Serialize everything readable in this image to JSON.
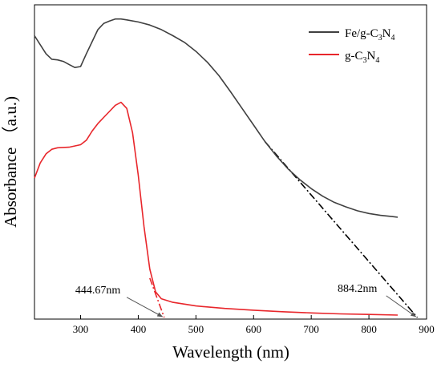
{
  "chart_data": {
    "type": "line",
    "xlabel": "Wavelength (nm)",
    "ylabel": "Absorbance （a.u.)",
    "xlim": [
      220,
      900
    ],
    "ylim": [
      0,
      1
    ],
    "xticks": [
      300,
      400,
      500,
      600,
      700,
      800,
      900
    ],
    "yticks_shown": false,
    "grid": false,
    "legend_position": "top-right",
    "series": [
      {
        "name": "Fe/g-C3N4",
        "name_parts": {
          "a": "Fe/g-C",
          "b": "3",
          "c": "N",
          "d": "4"
        },
        "color": "#404040",
        "points": [
          [
            220,
            0.93
          ],
          [
            230,
            0.9
          ],
          [
            240,
            0.87
          ],
          [
            250,
            0.852
          ],
          [
            260,
            0.85
          ],
          [
            270,
            0.845
          ],
          [
            280,
            0.835
          ],
          [
            290,
            0.825
          ],
          [
            300,
            0.828
          ],
          [
            310,
            0.87
          ],
          [
            320,
            0.91
          ],
          [
            330,
            0.95
          ],
          [
            340,
            0.97
          ],
          [
            350,
            0.978
          ],
          [
            360,
            0.985
          ],
          [
            370,
            0.985
          ],
          [
            380,
            0.982
          ],
          [
            400,
            0.975
          ],
          [
            420,
            0.965
          ],
          [
            440,
            0.95
          ],
          [
            460,
            0.93
          ],
          [
            480,
            0.908
          ],
          [
            500,
            0.878
          ],
          [
            520,
            0.842
          ],
          [
            540,
            0.798
          ],
          [
            560,
            0.745
          ],
          [
            580,
            0.69
          ],
          [
            600,
            0.635
          ],
          [
            620,
            0.58
          ],
          [
            640,
            0.532
          ],
          [
            660,
            0.49
          ],
          [
            680,
            0.455
          ],
          [
            700,
            0.425
          ],
          [
            720,
            0.4
          ],
          [
            740,
            0.38
          ],
          [
            760,
            0.365
          ],
          [
            780,
            0.352
          ],
          [
            800,
            0.343
          ],
          [
            820,
            0.337
          ],
          [
            840,
            0.333
          ],
          [
            850,
            0.331
          ]
        ]
      },
      {
        "name": "g-C3N4",
        "name_parts": {
          "a": "g-C",
          "b": "3",
          "c": "N",
          "d": "4"
        },
        "color": "#e8262b",
        "points": [
          [
            220,
            0.46
          ],
          [
            230,
            0.51
          ],
          [
            240,
            0.54
          ],
          [
            250,
            0.555
          ],
          [
            260,
            0.56
          ],
          [
            280,
            0.562
          ],
          [
            300,
            0.57
          ],
          [
            310,
            0.585
          ],
          [
            320,
            0.615
          ],
          [
            330,
            0.64
          ],
          [
            340,
            0.66
          ],
          [
            350,
            0.68
          ],
          [
            360,
            0.7
          ],
          [
            370,
            0.71
          ],
          [
            380,
            0.69
          ],
          [
            390,
            0.61
          ],
          [
            400,
            0.47
          ],
          [
            410,
            0.3
          ],
          [
            420,
            0.16
          ],
          [
            430,
            0.085
          ],
          [
            440,
            0.062
          ],
          [
            460,
            0.05
          ],
          [
            500,
            0.038
          ],
          [
            550,
            0.03
          ],
          [
            600,
            0.024
          ],
          [
            650,
            0.019
          ],
          [
            700,
            0.015
          ],
          [
            750,
            0.012
          ],
          [
            800,
            0.01
          ],
          [
            850,
            0.008
          ]
        ]
      }
    ],
    "tangent_lines": [
      {
        "color": "#e8262b",
        "points": [
          [
            420,
            0.13
          ],
          [
            445,
            0.0
          ]
        ]
      },
      {
        "color": "#000000",
        "points": [
          [
            620,
            0.58
          ],
          [
            884,
            0.0
          ]
        ]
      }
    ],
    "annotations": [
      {
        "text": "444.67nm",
        "x": 444.67,
        "y": 0.0,
        "label_at": [
          330,
          0.08
        ]
      },
      {
        "text": "884.2nm",
        "x": 884.2,
        "y": 0.0,
        "label_at": [
          780,
          0.085
        ]
      }
    ]
  }
}
